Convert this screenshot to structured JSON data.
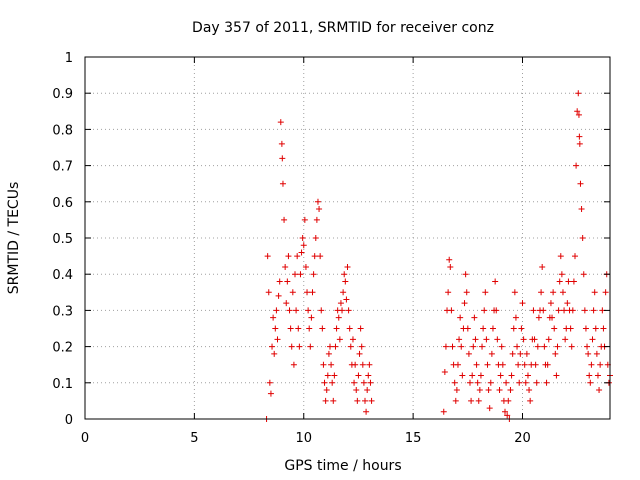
{
  "chart_data": {
    "type": "scatter",
    "title": "Day 357 of 2011, SRMTID for receiver conz",
    "xlabel": "GPS time / hours",
    "ylabel": "SRMTID / TECUs",
    "xlim": [
      0,
      24
    ],
    "ylim": [
      0,
      1
    ],
    "xticks": [
      0,
      5,
      10,
      15,
      20
    ],
    "yticks": [
      0,
      0.1,
      0.2,
      0.3,
      0.4,
      0.5,
      0.6,
      0.7,
      0.8,
      0.9,
      1
    ],
    "grid": true,
    "marker": "+",
    "color": "#e00000",
    "series": [
      {
        "values": [
          [
            8.3,
            0.0
          ],
          [
            8.35,
            0.45
          ],
          [
            8.4,
            0.35
          ],
          [
            8.45,
            0.1
          ],
          [
            8.5,
            0.07
          ],
          [
            8.55,
            0.2
          ],
          [
            8.6,
            0.28
          ],
          [
            8.65,
            0.18
          ],
          [
            8.7,
            0.25
          ],
          [
            8.75,
            0.3
          ],
          [
            8.8,
            0.22
          ],
          [
            8.85,
            0.34
          ],
          [
            8.9,
            0.38
          ],
          [
            8.95,
            0.82
          ],
          [
            9.0,
            0.76
          ],
          [
            9.02,
            0.72
          ],
          [
            9.05,
            0.65
          ],
          [
            9.1,
            0.55
          ],
          [
            9.15,
            0.42
          ],
          [
            9.2,
            0.32
          ],
          [
            9.25,
            0.38
          ],
          [
            9.3,
            0.45
          ],
          [
            9.35,
            0.3
          ],
          [
            9.4,
            0.25
          ],
          [
            9.45,
            0.2
          ],
          [
            9.5,
            0.35
          ],
          [
            9.55,
            0.15
          ],
          [
            9.6,
            0.4
          ],
          [
            9.65,
            0.3
          ],
          [
            9.7,
            0.45
          ],
          [
            9.75,
            0.25
          ],
          [
            9.8,
            0.2
          ],
          [
            9.85,
            0.4
          ],
          [
            9.9,
            0.46
          ],
          [
            9.95,
            0.5
          ],
          [
            10.0,
            0.48
          ],
          [
            10.05,
            0.55
          ],
          [
            10.1,
            0.42
          ],
          [
            10.15,
            0.35
          ],
          [
            10.2,
            0.3
          ],
          [
            10.25,
            0.25
          ],
          [
            10.3,
            0.2
          ],
          [
            10.35,
            0.28
          ],
          [
            10.4,
            0.35
          ],
          [
            10.45,
            0.4
          ],
          [
            10.5,
            0.45
          ],
          [
            10.55,
            0.5
          ],
          [
            10.6,
            0.55
          ],
          [
            10.65,
            0.6
          ],
          [
            10.7,
            0.58
          ],
          [
            10.75,
            0.45
          ],
          [
            10.8,
            0.3
          ],
          [
            10.85,
            0.25
          ],
          [
            10.9,
            0.15
          ],
          [
            10.95,
            0.1
          ],
          [
            11.0,
            0.05
          ],
          [
            11.05,
            0.08
          ],
          [
            11.1,
            0.12
          ],
          [
            11.15,
            0.18
          ],
          [
            11.2,
            0.2
          ],
          [
            11.25,
            0.15
          ],
          [
            11.3,
            0.1
          ],
          [
            11.35,
            0.05
          ],
          [
            11.4,
            0.12
          ],
          [
            11.45,
            0.2
          ],
          [
            11.5,
            0.25
          ],
          [
            11.55,
            0.3
          ],
          [
            11.6,
            0.28
          ],
          [
            11.65,
            0.22
          ],
          [
            11.7,
            0.32
          ],
          [
            11.75,
            0.3
          ],
          [
            11.8,
            0.35
          ],
          [
            11.85,
            0.4
          ],
          [
            11.9,
            0.38
          ],
          [
            11.95,
            0.33
          ],
          [
            12.0,
            0.42
          ],
          [
            12.05,
            0.3
          ],
          [
            12.1,
            0.25
          ],
          [
            12.15,
            0.2
          ],
          [
            12.2,
            0.15
          ],
          [
            12.25,
            0.22
          ],
          [
            12.3,
            0.1
          ],
          [
            12.35,
            0.15
          ],
          [
            12.4,
            0.08
          ],
          [
            12.45,
            0.05
          ],
          [
            12.5,
            0.12
          ],
          [
            12.55,
            0.18
          ],
          [
            12.6,
            0.25
          ],
          [
            12.65,
            0.2
          ],
          [
            12.7,
            0.15
          ],
          [
            12.75,
            0.1
          ],
          [
            12.8,
            0.05
          ],
          [
            12.85,
            0.02
          ],
          [
            12.9,
            0.08
          ],
          [
            12.95,
            0.12
          ],
          [
            13.0,
            0.15
          ],
          [
            13.05,
            0.1
          ],
          [
            13.1,
            0.05
          ],
          [
            16.4,
            0.02
          ],
          [
            16.45,
            0.13
          ],
          [
            16.5,
            0.2
          ],
          [
            16.55,
            0.3
          ],
          [
            16.6,
            0.35
          ],
          [
            16.65,
            0.44
          ],
          [
            16.7,
            0.42
          ],
          [
            16.75,
            0.3
          ],
          [
            16.8,
            0.2
          ],
          [
            16.85,
            0.15
          ],
          [
            16.9,
            0.1
          ],
          [
            16.95,
            0.05
          ],
          [
            17.0,
            0.08
          ],
          [
            17.05,
            0.15
          ],
          [
            17.1,
            0.22
          ],
          [
            17.15,
            0.28
          ],
          [
            17.2,
            0.2
          ],
          [
            17.25,
            0.12
          ],
          [
            17.3,
            0.25
          ],
          [
            17.35,
            0.32
          ],
          [
            17.4,
            0.4
          ],
          [
            17.45,
            0.35
          ],
          [
            17.5,
            0.25
          ],
          [
            17.55,
            0.18
          ],
          [
            17.6,
            0.1
          ],
          [
            17.65,
            0.05
          ],
          [
            17.7,
            0.12
          ],
          [
            17.75,
            0.2
          ],
          [
            17.8,
            0.28
          ],
          [
            17.85,
            0.22
          ],
          [
            17.9,
            0.15
          ],
          [
            17.95,
            0.1
          ],
          [
            18.0,
            0.05
          ],
          [
            18.05,
            0.08
          ],
          [
            18.1,
            0.12
          ],
          [
            18.15,
            0.2
          ],
          [
            18.2,
            0.25
          ],
          [
            18.25,
            0.3
          ],
          [
            18.3,
            0.35
          ],
          [
            18.35,
            0.22
          ],
          [
            18.4,
            0.15
          ],
          [
            18.45,
            0.08
          ],
          [
            18.5,
            0.03
          ],
          [
            18.55,
            0.1
          ],
          [
            18.6,
            0.18
          ],
          [
            18.65,
            0.25
          ],
          [
            18.7,
            0.3
          ],
          [
            18.75,
            0.38
          ],
          [
            18.8,
            0.3
          ],
          [
            18.85,
            0.22
          ],
          [
            18.9,
            0.15
          ],
          [
            18.95,
            0.08
          ],
          [
            19.0,
            0.12
          ],
          [
            19.05,
            0.2
          ],
          [
            19.1,
            0.15
          ],
          [
            19.15,
            0.05
          ],
          [
            19.2,
            0.02
          ],
          [
            19.25,
            0.1
          ],
          [
            19.3,
            0.01
          ],
          [
            19.35,
            0.05
          ],
          [
            19.4,
            0.0
          ],
          [
            19.45,
            0.08
          ],
          [
            19.5,
            0.12
          ],
          [
            19.55,
            0.18
          ],
          [
            19.6,
            0.25
          ],
          [
            19.65,
            0.35
          ],
          [
            19.7,
            0.28
          ],
          [
            19.75,
            0.2
          ],
          [
            19.8,
            0.15
          ],
          [
            19.85,
            0.1
          ],
          [
            19.9,
            0.18
          ],
          [
            19.95,
            0.25
          ],
          [
            20.0,
            0.32
          ],
          [
            20.05,
            0.22
          ],
          [
            20.1,
            0.15
          ],
          [
            20.15,
            0.1
          ],
          [
            20.2,
            0.18
          ],
          [
            20.25,
            0.12
          ],
          [
            20.3,
            0.08
          ],
          [
            20.35,
            0.05
          ],
          [
            20.4,
            0.15
          ],
          [
            20.45,
            0.22
          ],
          [
            20.5,
            0.3
          ],
          [
            20.55,
            0.22
          ],
          [
            20.6,
            0.15
          ],
          [
            20.65,
            0.1
          ],
          [
            20.7,
            0.2
          ],
          [
            20.75,
            0.28
          ],
          [
            20.8,
            0.3
          ],
          [
            20.85,
            0.35
          ],
          [
            20.9,
            0.42
          ],
          [
            20.95,
            0.3
          ],
          [
            21.0,
            0.2
          ],
          [
            21.05,
            0.15
          ],
          [
            21.1,
            0.1
          ],
          [
            21.15,
            0.15
          ],
          [
            21.2,
            0.22
          ],
          [
            21.25,
            0.28
          ],
          [
            21.3,
            0.32
          ],
          [
            21.35,
            0.28
          ],
          [
            21.4,
            0.35
          ],
          [
            21.45,
            0.25
          ],
          [
            21.5,
            0.18
          ],
          [
            21.55,
            0.12
          ],
          [
            21.6,
            0.2
          ],
          [
            21.65,
            0.3
          ],
          [
            21.7,
            0.38
          ],
          [
            21.75,
            0.45
          ],
          [
            21.8,
            0.4
          ],
          [
            21.85,
            0.35
          ],
          [
            21.9,
            0.3
          ],
          [
            21.95,
            0.22
          ],
          [
            22.0,
            0.25
          ],
          [
            22.05,
            0.32
          ],
          [
            22.1,
            0.38
          ],
          [
            22.15,
            0.3
          ],
          [
            22.2,
            0.25
          ],
          [
            22.25,
            0.2
          ],
          [
            22.3,
            0.3
          ],
          [
            22.35,
            0.38
          ],
          [
            22.4,
            0.45
          ],
          [
            22.45,
            0.7
          ],
          [
            22.5,
            0.85
          ],
          [
            22.55,
            0.9
          ],
          [
            22.58,
            0.84
          ],
          [
            22.6,
            0.78
          ],
          [
            22.62,
            0.76
          ],
          [
            22.65,
            0.65
          ],
          [
            22.7,
            0.58
          ],
          [
            22.75,
            0.5
          ],
          [
            22.8,
            0.4
          ],
          [
            22.85,
            0.3
          ],
          [
            22.9,
            0.25
          ],
          [
            22.95,
            0.2
          ],
          [
            23.0,
            0.18
          ],
          [
            23.05,
            0.12
          ],
          [
            23.1,
            0.1
          ],
          [
            23.15,
            0.15
          ],
          [
            23.2,
            0.22
          ],
          [
            23.25,
            0.3
          ],
          [
            23.3,
            0.35
          ],
          [
            23.35,
            0.25
          ],
          [
            23.4,
            0.18
          ],
          [
            23.45,
            0.12
          ],
          [
            23.5,
            0.08
          ],
          [
            23.55,
            0.15
          ],
          [
            23.6,
            0.2
          ],
          [
            23.65,
            0.3
          ],
          [
            23.7,
            0.25
          ],
          [
            23.75,
            0.2
          ],
          [
            23.8,
            0.35
          ],
          [
            23.85,
            0.4
          ],
          [
            23.9,
            0.15
          ],
          [
            23.95,
            0.1
          ],
          [
            24.0,
            0.12
          ]
        ]
      }
    ]
  }
}
